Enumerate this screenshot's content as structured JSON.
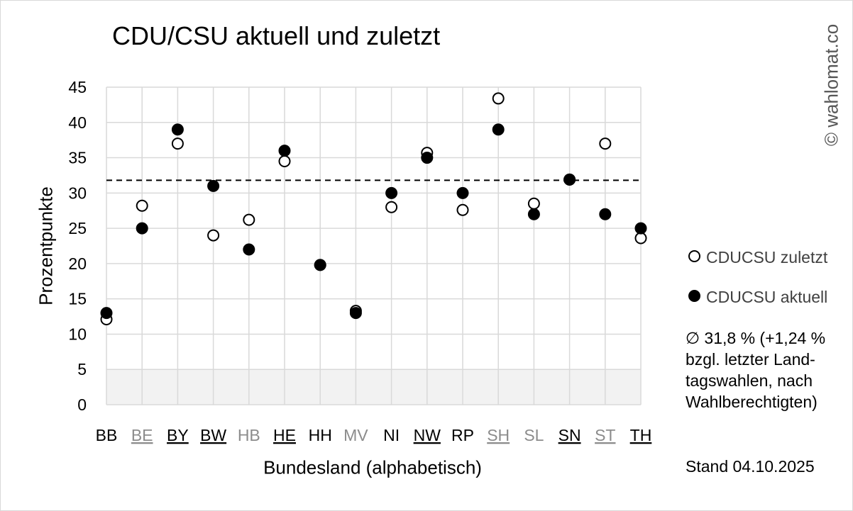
{
  "title": "CDU/CSU aktuell und zuletzt",
  "copyright": "© wahlomat.co",
  "legend": {
    "zuletzt": "CDUCSU zuletzt",
    "aktuell": "CDUCSU aktuell"
  },
  "note": "∅ 31,8 % (+1,24 %\nbzgl. letzter Land-\ntagswahlen, nach\nWahlberechtigten)",
  "stand": "Stand 04.10.2025",
  "colors": {
    "marker": "#000000",
    "grid": "#d9d9d9",
    "band": "#f2f2f2",
    "gray_label": "#8c8c8c"
  },
  "chart_data": {
    "type": "scatter",
    "xlabel": "Bundesland (alphabetisch)",
    "ylabel": "Prozentpunkte",
    "ylim": [
      0,
      45
    ],
    "yticks": [
      0,
      5,
      10,
      15,
      20,
      25,
      30,
      35,
      40,
      45
    ],
    "grid": true,
    "legend_position": "right",
    "categories": [
      "BB",
      "BE",
      "BY",
      "BW",
      "HB",
      "HE",
      "HH",
      "MV",
      "NI",
      "NW",
      "RP",
      "SH",
      "SL",
      "SN",
      "ST",
      "TH"
    ],
    "category_styles": [
      {
        "underline": false,
        "gray": false
      },
      {
        "underline": true,
        "gray": true
      },
      {
        "underline": true,
        "gray": false
      },
      {
        "underline": true,
        "gray": false
      },
      {
        "underline": false,
        "gray": true
      },
      {
        "underline": true,
        "gray": false
      },
      {
        "underline": false,
        "gray": false
      },
      {
        "underline": false,
        "gray": true
      },
      {
        "underline": false,
        "gray": false
      },
      {
        "underline": true,
        "gray": false
      },
      {
        "underline": false,
        "gray": false
      },
      {
        "underline": true,
        "gray": true
      },
      {
        "underline": false,
        "gray": true
      },
      {
        "underline": true,
        "gray": false
      },
      {
        "underline": true,
        "gray": true
      },
      {
        "underline": true,
        "gray": false
      }
    ],
    "average_line": 31.8,
    "shaded_band": [
      0,
      5
    ],
    "series": [
      {
        "name": "CDUCSU zuletzt",
        "marker": "open",
        "values": [
          12.1,
          28.2,
          37.0,
          24.0,
          26.2,
          34.5,
          19.8,
          13.3,
          28.0,
          35.7,
          27.6,
          43.4,
          28.5,
          31.9,
          37.0,
          23.6
        ]
      },
      {
        "name": "CDUCSU aktuell",
        "marker": "filled",
        "values": [
          13.0,
          25.0,
          39.0,
          31.0,
          22.0,
          36.0,
          19.8,
          13.0,
          30.0,
          35.0,
          30.0,
          39.0,
          27.0,
          31.9,
          27.0,
          25.0
        ]
      }
    ]
  }
}
